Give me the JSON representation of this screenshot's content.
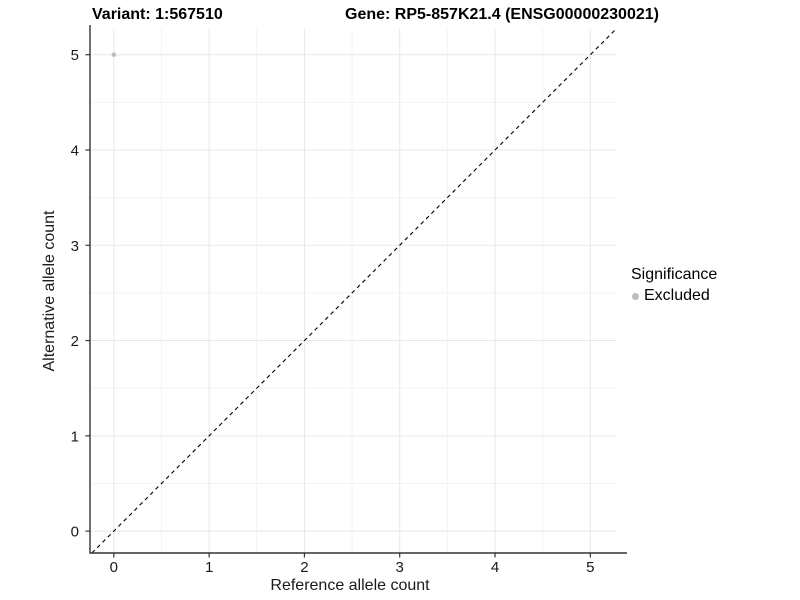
{
  "titles": {
    "variant": "Variant: 1:567510",
    "gene": "Gene: RP5-857K21.4 (ENSG00000230021)"
  },
  "chart_data": {
    "type": "scatter",
    "title": "Variant: 1:567510   Gene: RP5-857K21.4 (ENSG00000230021)",
    "xlabel": "Reference allele count",
    "ylabel": "Alternative allele count",
    "xlim": [
      -0.25,
      5.28
    ],
    "ylim": [
      -0.23,
      5.27
    ],
    "xticks": [
      0,
      1,
      2,
      3,
      4,
      5
    ],
    "yticks": [
      0,
      1,
      2,
      3,
      4,
      5
    ],
    "minor_gridlines_x": [
      0.5,
      1.5,
      2.5,
      3.5,
      4.5
    ],
    "minor_gridlines_y": [
      0.5,
      1.5,
      2.5,
      3.5,
      4.5
    ],
    "grid": "on",
    "identity_line": {
      "slope": 1,
      "intercept": 0,
      "style": "dashed",
      "color": "#000000"
    },
    "series": [
      {
        "name": "Excluded",
        "color": "#bdbdbd",
        "points": [
          {
            "x": 0,
            "y": 5
          }
        ]
      }
    ],
    "legend": {
      "title": "Significance",
      "position": "right",
      "items": [
        {
          "label": "Excluded",
          "color": "#bdbdbd"
        }
      ]
    }
  },
  "colors": {
    "background": "#ffffff",
    "grid_major": "#e7e7e7",
    "grid_minor": "#f3f3f3",
    "axis_line": "#333333",
    "tick_text": "#1a1a1a",
    "point": "#bdbdbd",
    "dashed_line": "#000000"
  }
}
